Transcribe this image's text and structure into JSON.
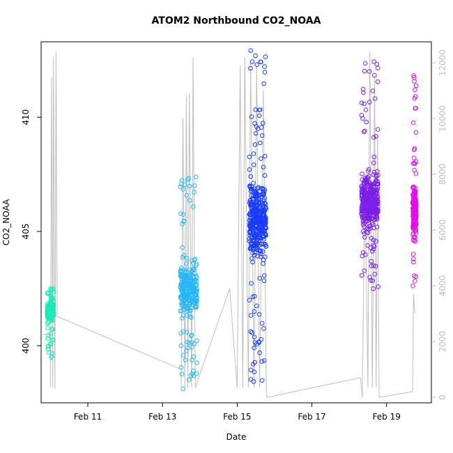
{
  "chart_data": {
    "type": "scatter",
    "title": "ATOM2 Northbound CO2_NOAA",
    "xlabel": "Date",
    "ylabel": "CO2_NOAA",
    "x_ticks": [
      "Feb 11",
      "Feb 13",
      "Feb 15",
      "Feb 17",
      "Feb 19"
    ],
    "x_tick_values": [
      11,
      13,
      15,
      17,
      19
    ],
    "xlim": [
      9.75,
      20.2
    ],
    "ylim": [
      397.5,
      413.3
    ],
    "y_ticks": [
      "400",
      "405",
      "410"
    ],
    "y_tick_values": [
      400,
      405,
      410
    ],
    "y2lim": [
      -200,
      12750
    ],
    "y2_ticks": [
      "0",
      "2000",
      "4000",
      "6000",
      "8000",
      "10000",
      "12000"
    ],
    "y2_tick_values": [
      0,
      2000,
      4000,
      6000,
      8000,
      10000,
      12000
    ],
    "grid": false,
    "legend": "none",
    "colors": {
      "flight1": "#1de9b6",
      "flight2": "#29b6f6",
      "flight3": "#1a3cff",
      "flight4": "#7b1fe8",
      "flight5": "#e010e8",
      "altitude_line": "#bdbdbd"
    },
    "series": [
      {
        "key": "flight1",
        "x_center": 10.0,
        "x_width": 0.18,
        "y_min": 399.4,
        "y_mid": 401.5,
        "y_max": 402.5,
        "points": 240
      },
      {
        "key": "flight2",
        "x_center": 13.7,
        "x_width": 0.45,
        "y_min": 398.1,
        "y_mid": 402.5,
        "y_max": 407.5,
        "points": 300
      },
      {
        "key": "flight3",
        "x_center": 15.55,
        "x_width": 0.45,
        "y_min": 398.4,
        "y_mid": 405.6,
        "y_max": 413.0,
        "points": 420
      },
      {
        "key": "flight4",
        "x_center": 18.55,
        "x_width": 0.45,
        "y_min": 402.4,
        "y_mid": 406.3,
        "y_max": 412.8,
        "points": 380
      },
      {
        "key": "flight5",
        "x_center": 19.75,
        "x_width": 0.1,
        "y_min": 401.7,
        "y_mid": 406.0,
        "y_max": 412.5,
        "points": 180
      }
    ],
    "altitude_path": [
      [
        9.75,
        400.5
      ],
      [
        10.0,
        400.5
      ],
      [
        10.0,
        350
      ],
      [
        10.03,
        11500
      ],
      [
        10.06,
        350
      ],
      [
        10.08,
        12200
      ],
      [
        10.12,
        300
      ],
      [
        10.15,
        12400
      ],
      [
        10.18,
        2900
      ],
      [
        13.5,
        1000
      ],
      [
        13.5,
        350
      ],
      [
        13.55,
        10000
      ],
      [
        13.6,
        350
      ],
      [
        13.64,
        10800
      ],
      [
        13.68,
        350
      ],
      [
        13.72,
        10900
      ],
      [
        13.78,
        350
      ],
      [
        13.82,
        12200
      ],
      [
        13.88,
        350
      ],
      [
        14.8,
        3900
      ],
      [
        15.0,
        350
      ],
      [
        15.08,
        11900
      ],
      [
        15.15,
        350
      ],
      [
        15.2,
        12200
      ],
      [
        15.3,
        350
      ],
      [
        15.36,
        12000
      ],
      [
        15.45,
        350
      ],
      [
        15.52,
        11900
      ],
      [
        15.6,
        350
      ],
      [
        15.7,
        11000
      ],
      [
        15.78,
        350
      ],
      [
        15.8,
        0
      ],
      [
        18.3,
        700
      ],
      [
        18.35,
        0
      ],
      [
        18.42,
        8000
      ],
      [
        18.5,
        350
      ],
      [
        18.55,
        12400
      ],
      [
        18.62,
        350
      ],
      [
        18.68,
        11500
      ],
      [
        18.72,
        350
      ],
      [
        18.76,
        9400
      ],
      [
        18.8,
        0
      ],
      [
        19.7,
        200
      ],
      [
        19.7,
        350
      ],
      [
        19.72,
        3700
      ],
      [
        19.76,
        3000
      ]
    ]
  }
}
